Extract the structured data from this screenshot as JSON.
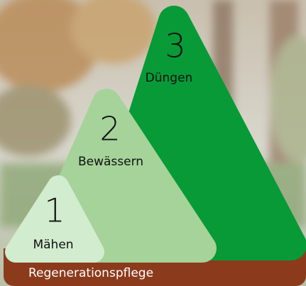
{
  "steps": [
    {
      "number": 1,
      "label": "Mähen"
    },
    {
      "number": 2,
      "label": "Bewässern"
    },
    {
      "number": 3,
      "label": "Düngen"
    }
  ],
  "base": {
    "label": "Regenerationspflege"
  }
}
